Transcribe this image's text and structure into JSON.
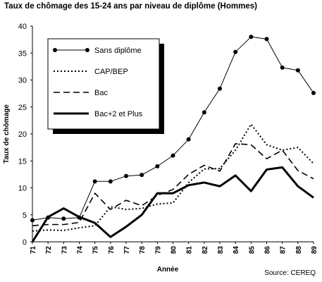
{
  "chart_data": {
    "type": "line",
    "title": "Taux de chômage des 15-24 ans par niveau de diplôme (Hommes)",
    "xlabel": "Année",
    "ylabel": "Taux de chômage",
    "source": "Source: CEREQ",
    "x": [
      "71",
      "72",
      "73",
      "74",
      "75",
      "76",
      "77",
      "78",
      "79",
      "80",
      "81",
      "82",
      "83",
      "84",
      "85",
      "86",
      "87",
      "88",
      "89"
    ],
    "y_ticks": [
      "0",
      "5",
      "10",
      "15",
      "20",
      "25",
      "30",
      "35",
      "40"
    ],
    "ylim": [
      0,
      40
    ],
    "grid": false,
    "legend_position": "top-left, inside plot",
    "series": [
      {
        "name": "Sans diplôme",
        "style": "solid-markers",
        "values": [
          4.0,
          4.5,
          4.3,
          4.5,
          11.2,
          11.2,
          12.2,
          12.4,
          14.0,
          16.0,
          19.0,
          24.0,
          28.4,
          35.2,
          38.0,
          37.6,
          32.3,
          31.8,
          27.6
        ]
      },
      {
        "name": "CAP/BEP",
        "style": "dotted",
        "values": [
          2.0,
          2.2,
          2.1,
          2.6,
          3.0,
          6.5,
          6.0,
          6.2,
          7.0,
          7.2,
          11.0,
          13.5,
          13.6,
          17.0,
          21.8,
          18.0,
          17.0,
          17.5,
          14.5
        ]
      },
      {
        "name": "Bac",
        "style": "dashed",
        "values": [
          3.0,
          3.2,
          3.2,
          3.6,
          9.0,
          6.0,
          7.7,
          6.7,
          8.6,
          9.7,
          12.5,
          14.2,
          13.1,
          18.2,
          18.0,
          15.4,
          17.0,
          13.2,
          11.7
        ]
      },
      {
        "name": "Bac+2 et Plus",
        "style": "thick",
        "values": [
          0,
          4.6,
          6.2,
          4.6,
          3.5,
          0.9,
          2.8,
          5.0,
          9.0,
          9.0,
          10.5,
          11.0,
          10.3,
          12.3,
          9.4,
          13.4,
          13.8,
          10.3,
          8.2
        ]
      }
    ]
  }
}
